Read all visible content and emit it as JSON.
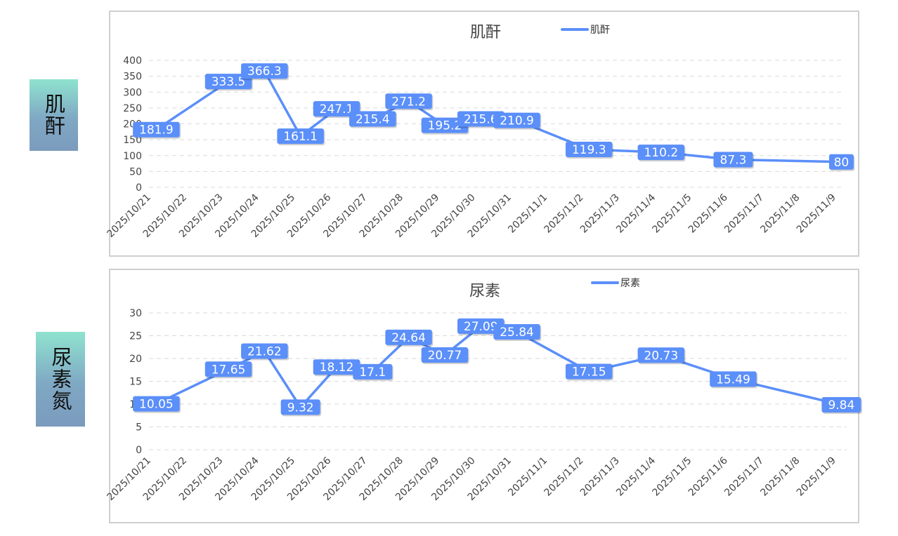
{
  "side_labels": {
    "creatinine": "肌酐",
    "urea": "尿素氮"
  },
  "chart_data": [
    {
      "type": "line",
      "title": "肌酐",
      "legend": "top",
      "grid": true,
      "ylim": [
        0,
        400
      ],
      "yticks": [
        0,
        50,
        100,
        150,
        200,
        250,
        300,
        350,
        400
      ],
      "categories": [
        "2025/10/21",
        "2025/10/22",
        "2025/10/23",
        "2025/10/24",
        "2025/10/25",
        "2025/10/26",
        "2025/10/27",
        "2025/10/28",
        "2025/10/29",
        "2025/10/30",
        "2025/10/31",
        "2025/11/1",
        "2025/11/2",
        "2025/11/3",
        "2025/11/4",
        "2025/11/5",
        "2025/11/6",
        "2025/11/7",
        "2025/11/8",
        "2025/11/9"
      ],
      "series": [
        {
          "name": "肌酐",
          "color": "#5b8ff9",
          "points": [
            {
              "cat": 0.3,
              "value": 181.9
            },
            {
              "cat": 2.3,
              "value": 333.5
            },
            {
              "cat": 3.3,
              "value": 366.3
            },
            {
              "cat": 4.3,
              "value": 161.1
            },
            {
              "cat": 5.3,
              "value": 247.1
            },
            {
              "cat": 6.3,
              "value": 215.4
            },
            {
              "cat": 7.3,
              "value": 271.2
            },
            {
              "cat": 8.3,
              "value": 195.2
            },
            {
              "cat": 9.3,
              "value": 215.6
            },
            {
              "cat": 10.3,
              "value": 210.9
            },
            {
              "cat": 12.3,
              "value": 119.3
            },
            {
              "cat": 14.3,
              "value": 110.2
            },
            {
              "cat": 16.3,
              "value": 87.3
            },
            {
              "cat": 19.3,
              "value": 80
            }
          ]
        }
      ]
    },
    {
      "type": "line",
      "title": "尿素",
      "legend": "top",
      "grid": true,
      "ylim": [
        0,
        30
      ],
      "yticks": [
        0,
        5,
        10,
        15,
        20,
        25,
        30
      ],
      "categories": [
        "2025/10/21",
        "2025/10/22",
        "2025/10/23",
        "2025/10/24",
        "2025/10/25",
        "2025/10/26",
        "2025/10/27",
        "2025/10/28",
        "2025/10/29",
        "2025/10/30",
        "2025/10/31",
        "2025/11/1",
        "2025/11/2",
        "2025/11/3",
        "2025/11/4",
        "2025/11/5",
        "2025/11/6",
        "2025/11/7",
        "2025/11/8",
        "2025/11/9"
      ],
      "series": [
        {
          "name": "尿素",
          "color": "#5b8ff9",
          "points": [
            {
              "cat": 0.3,
              "value": 10.05
            },
            {
              "cat": 2.3,
              "value": 17.65
            },
            {
              "cat": 3.3,
              "value": 21.62
            },
            {
              "cat": 4.3,
              "value": 9.32
            },
            {
              "cat": 5.3,
              "value": 18.12
            },
            {
              "cat": 6.3,
              "value": 17.1
            },
            {
              "cat": 7.3,
              "value": 24.64
            },
            {
              "cat": 8.3,
              "value": 20.77
            },
            {
              "cat": 9.3,
              "value": 27.09
            },
            {
              "cat": 10.3,
              "value": 25.84
            },
            {
              "cat": 12.3,
              "value": 17.15
            },
            {
              "cat": 14.3,
              "value": 20.73
            },
            {
              "cat": 16.3,
              "value": 15.49
            },
            {
              "cat": 19.3,
              "value": 9.84
            }
          ]
        }
      ]
    }
  ]
}
